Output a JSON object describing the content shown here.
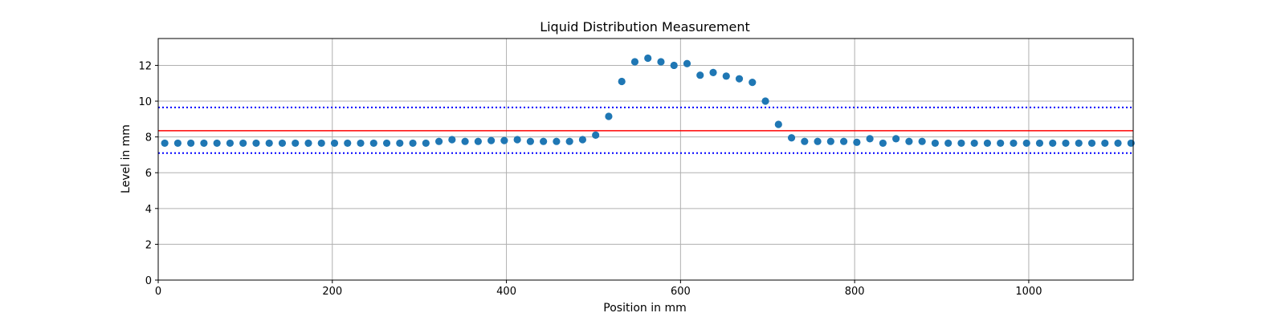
{
  "chart_data": {
    "type": "scatter",
    "title": "Liquid Distribution Measurement",
    "xlabel": "Position in mm",
    "ylabel": "Level in mm",
    "xlim": [
      0,
      1120
    ],
    "ylim": [
      0,
      13.5
    ],
    "xticks": [
      0,
      200,
      400,
      600,
      800,
      1000
    ],
    "yticks": [
      0,
      2,
      4,
      6,
      8,
      10,
      12
    ],
    "grid": true,
    "colors": {
      "points": "#1f77b4",
      "mean_line": "#ff0000",
      "limit_lines": "#0000ff",
      "grid": "#b0b0b0"
    },
    "series": [
      {
        "x": [
          7.5,
          22.5,
          37.5,
          52.5,
          67.5,
          82.5,
          97.5,
          112.5,
          127.5,
          142.5,
          157.5,
          172.5,
          187.5,
          202.5,
          217.5,
          232.5,
          247.5,
          262.5,
          277.5,
          292.5,
          307.5,
          322.5,
          337.5,
          352.5,
          367.5,
          382.5,
          397.5,
          412.5,
          427.5,
          442.5,
          457.5,
          472.5,
          487.5,
          502.5,
          517.5,
          532.5,
          547.5,
          562.5,
          577.5,
          592.5,
          607.5,
          622.5,
          637.5,
          652.5,
          667.5,
          682.5,
          697.5,
          712.5,
          727.5,
          742.5,
          757.5,
          772.5,
          787.5,
          802.5,
          817.5,
          832.5,
          847.5,
          862.5,
          877.5,
          892.5,
          907.5,
          922.5,
          937.5,
          952.5,
          967.5,
          982.5,
          997.5,
          1012.5,
          1027.5,
          1042.5,
          1057.5,
          1072.5,
          1087.5,
          1102.5,
          1117.5
        ],
        "y": [
          7.65,
          7.65,
          7.65,
          7.65,
          7.65,
          7.65,
          7.65,
          7.65,
          7.65,
          7.65,
          7.65,
          7.65,
          7.65,
          7.65,
          7.65,
          7.65,
          7.65,
          7.65,
          7.65,
          7.65,
          7.65,
          7.75,
          7.85,
          7.75,
          7.75,
          7.8,
          7.8,
          7.85,
          7.75,
          7.75,
          7.75,
          7.75,
          7.85,
          8.1,
          9.15,
          11.1,
          12.2,
          12.4,
          12.2,
          12.0,
          12.1,
          11.45,
          11.6,
          11.4,
          11.25,
          11.05,
          10.0,
          8.7,
          7.95,
          7.75,
          7.75,
          7.75,
          7.75,
          7.7,
          7.9,
          7.65,
          7.9,
          7.75,
          7.75,
          7.65,
          7.65,
          7.65,
          7.65,
          7.65,
          7.65,
          7.65,
          7.65,
          7.65,
          7.65,
          7.65,
          7.65,
          7.65,
          7.65,
          7.65,
          7.65
        ]
      }
    ],
    "reference_lines": {
      "mean": 8.35,
      "upper_limit": 9.65,
      "lower_limit": 7.1
    }
  }
}
